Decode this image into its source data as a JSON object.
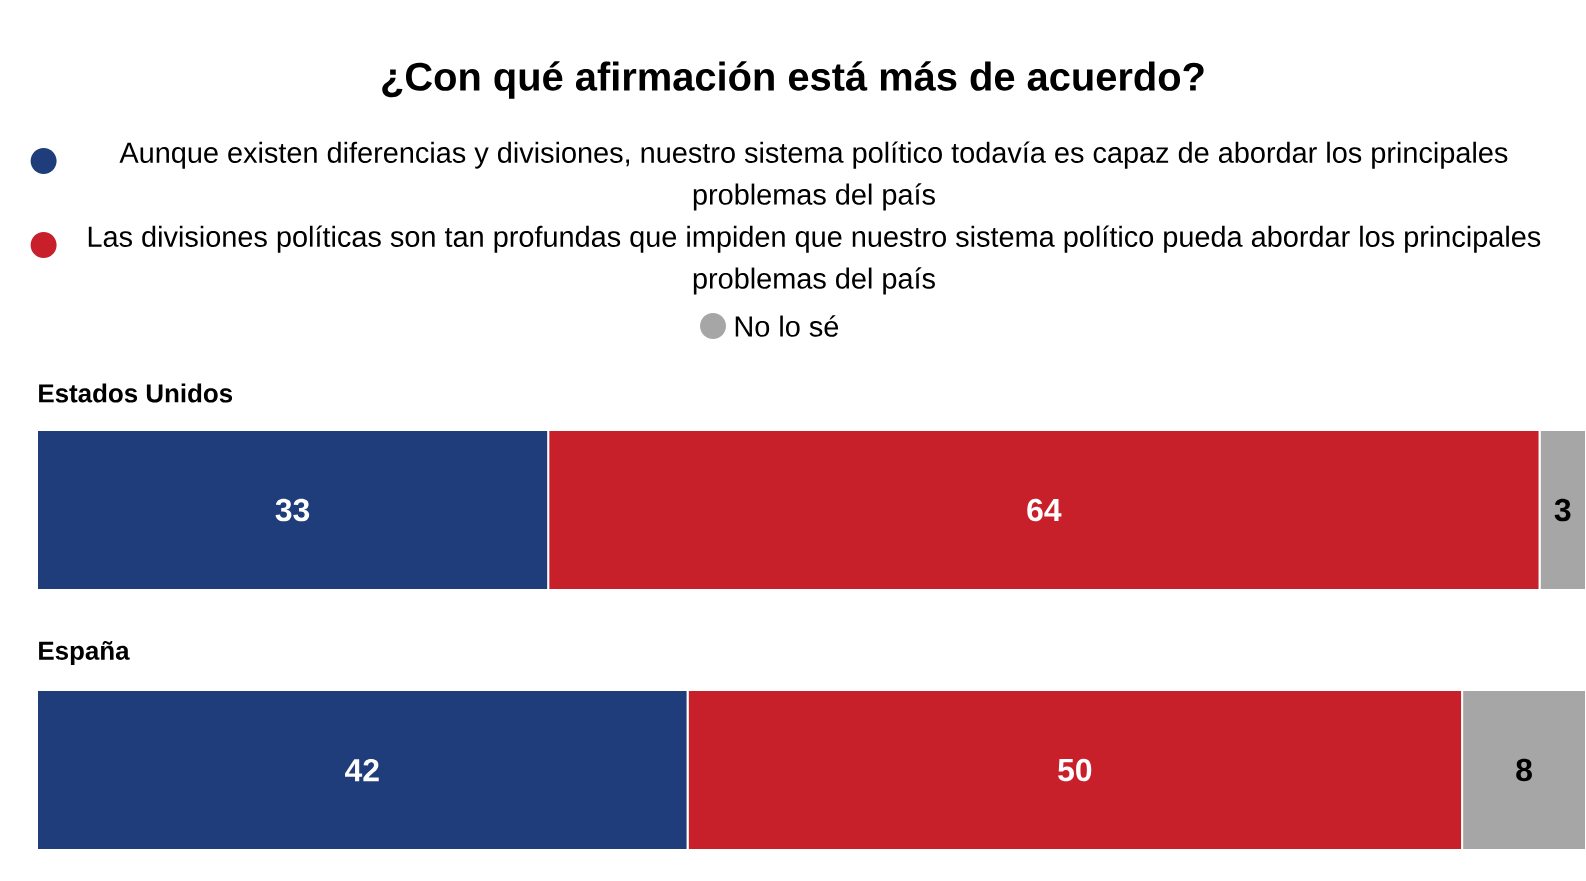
{
  "chart_data": {
    "type": "bar",
    "orientation": "horizontal",
    "stacked": true,
    "data_labels": true,
    "legend": "top",
    "title": "¿Con qué afirmación está más de acuerdo?",
    "categories": [
      "Estados Unidos",
      "España"
    ],
    "series": [
      {
        "name": "Aunque existen diferencias y divisiones, nuestro sistema político todavía es capaz de abordar los principales problemas del país",
        "color": "#1f3d7a",
        "values": [
          33,
          42
        ]
      },
      {
        "name": "Las divisiones políticas son tan profundas que impiden que nuestro sistema político pueda abordar los principales problemas del país",
        "color": "#c8202b",
        "values": [
          64,
          50
        ]
      },
      {
        "name": "No lo sé",
        "color": "#a6a6a6",
        "values": [
          3,
          8
        ]
      }
    ]
  }
}
